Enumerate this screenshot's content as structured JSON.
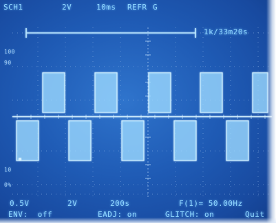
{
  "screen": {
    "top_bar": {
      "channel": "SCH1",
      "volts_div": "2V",
      "time_div": "10ms",
      "mode": "REFR",
      "ref_id": "G",
      "timestamp": "1k/33m20s"
    },
    "graticule_labels": {
      "l100": "100",
      "l90": "90",
      "l10": "10",
      "l0": "0%"
    },
    "bottom_row_1": {
      "ch1_scale": "0.5V",
      "ch2_scale": "2V",
      "sweep": "200s",
      "frequency": "F(1)= 50.00Hz"
    },
    "bottom_row_2": {
      "env": "ENV:  off",
      "eadj": "EADJ: on",
      "glitch": "GLITCH: on",
      "quit": "Quit"
    },
    "trace_color": "#a9e2ff",
    "background_color": "#1f5bb5"
  }
}
